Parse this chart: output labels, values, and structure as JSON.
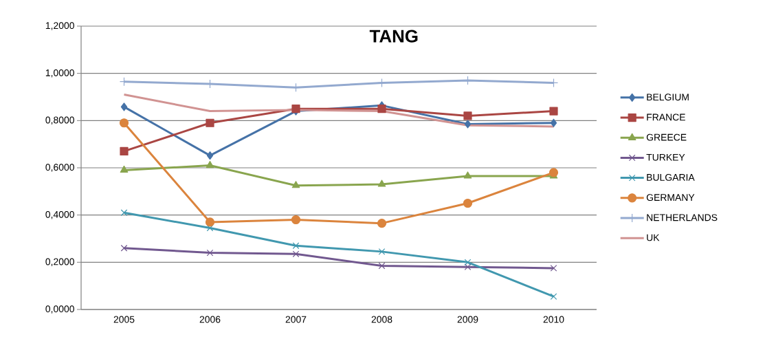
{
  "chart_data": {
    "type": "line",
    "title": "TANG",
    "categories": [
      "2005",
      "2006",
      "2007",
      "2008",
      "2009",
      "2010"
    ],
    "series": [
      {
        "name": "BELGIUM",
        "color": "#4572a7",
        "marker": "diamond",
        "values": [
          0.858,
          0.652,
          0.84,
          0.864,
          0.785,
          0.79
        ]
      },
      {
        "name": "FRANCE",
        "color": "#aa4643",
        "marker": "square",
        "values": [
          0.67,
          0.79,
          0.85,
          0.85,
          0.82,
          0.84
        ]
      },
      {
        "name": "GREECE",
        "color": "#89a54e",
        "marker": "triangle",
        "values": [
          0.59,
          0.61,
          0.525,
          0.53,
          0.565,
          0.565
        ]
      },
      {
        "name": "TURKEY",
        "color": "#71588f",
        "marker": "cross",
        "values": [
          0.26,
          0.24,
          0.235,
          0.185,
          0.18,
          0.175
        ]
      },
      {
        "name": "BULGARIA",
        "color": "#4198af",
        "marker": "cross",
        "values": [
          0.41,
          0.345,
          0.27,
          0.245,
          0.2,
          0.055
        ]
      },
      {
        "name": "GERMANY",
        "color": "#db843d",
        "marker": "circle",
        "values": [
          0.79,
          0.37,
          0.38,
          0.365,
          0.45,
          0.58
        ]
      },
      {
        "name": "NETHERLANDS",
        "color": "#93a9cf",
        "marker": "plus",
        "values": [
          0.965,
          0.955,
          0.94,
          0.96,
          0.97,
          0.96
        ]
      },
      {
        "name": "UK",
        "color": "#d19392",
        "marker": "none",
        "values": [
          0.91,
          0.84,
          0.845,
          0.84,
          0.78,
          0.775
        ]
      }
    ],
    "ylim": [
      0,
      1.2
    ],
    "yticks": [
      {
        "value": 0,
        "label": "0,0000"
      },
      {
        "value": 0.2,
        "label": "0,2000"
      },
      {
        "value": 0.4,
        "label": "0,4000"
      },
      {
        "value": 0.6,
        "label": "0,6000"
      },
      {
        "value": 0.8,
        "label": "0,8000"
      },
      {
        "value": 1.0,
        "label": "1,0000"
      },
      {
        "value": 1.2,
        "label": "1,2000"
      }
    ],
    "grid": "y",
    "legend": "right"
  }
}
